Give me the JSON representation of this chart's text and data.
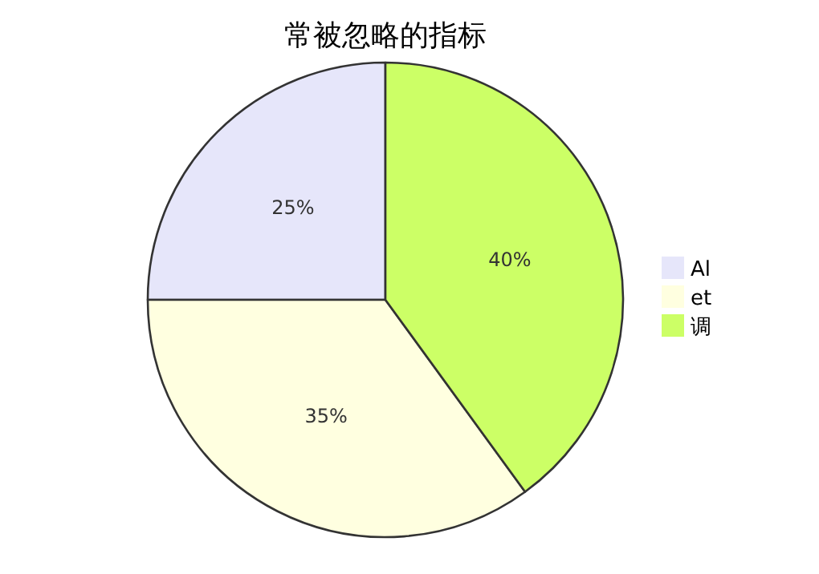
{
  "chart_data": {
    "type": "pie",
    "title": "常被忽略的指标",
    "categories": [
      "Al",
      "et",
      "调"
    ],
    "values": [
      25,
      35,
      40
    ],
    "colors": [
      "#e6e6fa",
      "#ffffe0",
      "#ccff66"
    ],
    "value_labels": [
      "25%",
      "35%",
      "40%"
    ],
    "legend": "right"
  }
}
